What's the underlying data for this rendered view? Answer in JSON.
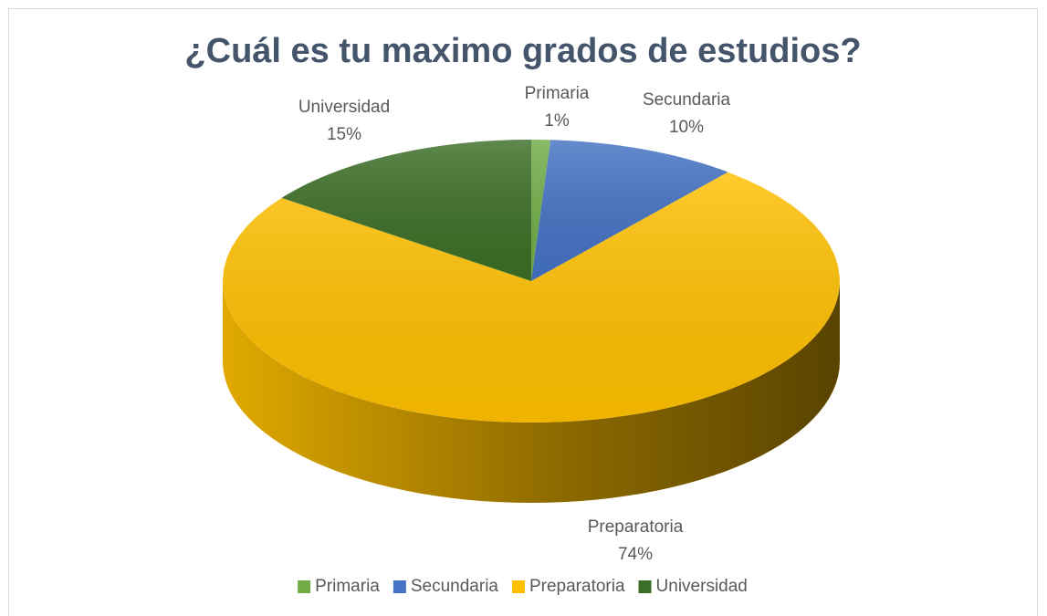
{
  "chart_data": {
    "type": "pie3d",
    "title": "¿Cuál es tu maximo grados de estudios?",
    "categories": [
      "Primaria",
      "Secundaria",
      "Preparatoria",
      "Universidad"
    ],
    "values": [
      1,
      10,
      74,
      15
    ],
    "value_labels": [
      "1%",
      "10%",
      "74%",
      "15%"
    ],
    "colors": [
      "#70ad47",
      "#4472c4",
      "#ffc000",
      "#3b6e26"
    ],
    "legend": "bottom"
  }
}
